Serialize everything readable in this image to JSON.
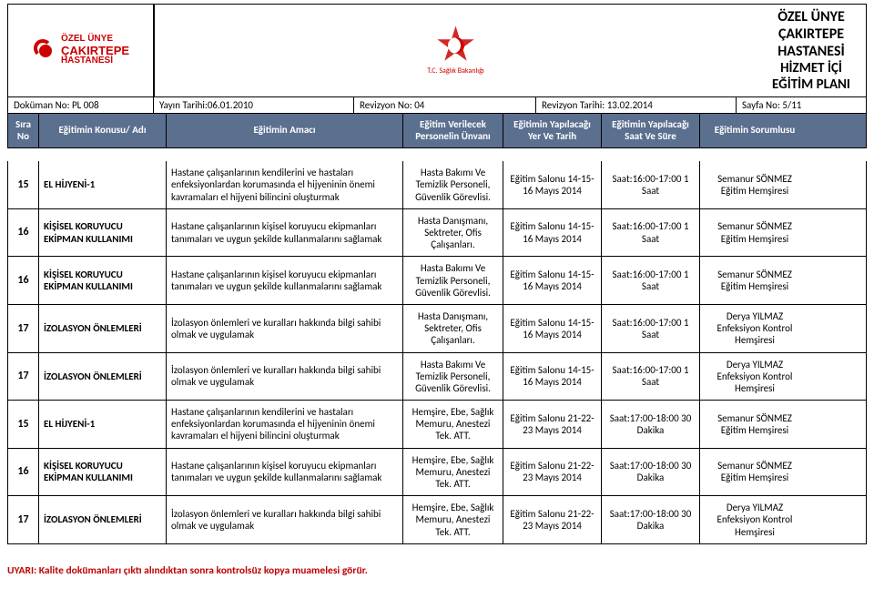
{
  "header": {
    "title": "ÖZEL ÜNYE ÇAKIRTEPE HASTANESİ",
    "subtitle": "HİZMET İÇİ EĞİTİM PLANI",
    "logo_top": "ÖZEL ÜNYE",
    "logo_main": "ÇAKIRTEPE",
    "logo_sub": "HASTANESİ",
    "right_label": "T.C. Sağlık Bakanlığı"
  },
  "meta": {
    "dokuman": "Doküman No: PL 008",
    "yayin": "Yayın Tarihi:06.01.2010",
    "revno": "Revizyon No: 04",
    "revtarih": "Revizyon Tarihi: 13.02.2014",
    "sayfa": "Sayfa No: 5/11"
  },
  "columns": {
    "sira": "Sıra No",
    "konu": "Eğitimin Konusu/ Adı",
    "amac": "Eğitimin Amacı",
    "unvan": "Eğitim Verilecek Personelin Ünvanı",
    "yer": "Eğitimin Yapılacağı Yer Ve Tarih",
    "saat": "Eğitimin Yapılacağı Saat Ve Süre",
    "sorumlu": "Eğitimin Sorumlusu"
  },
  "rows": [
    {
      "sira": "15",
      "konu": "EL HİJYENİ-1",
      "amac": "Hastane çalışanlarının kendilerini ve hastaları enfeksiyonlardan korumasında el hijyeninin önemi kavramaları  el hijyeni bilincini oluşturmak",
      "unvan": "Hasta Bakımı Ve Temizlik Personeli, Güvenlik Görevlisi.",
      "yer": "Eğitim Salonu 14-15-16 Mayıs 2014",
      "saat": "Saat:16:00-17:00 1 Saat",
      "sorumlu": "Semanur SÖNMEZ Eğitim Hemşiresi"
    },
    {
      "sira": "16",
      "konu": "KİŞİSEL KORUYUCU EKİPMAN KULLANIMI",
      "amac": "Hastane çalışanlarının kişisel koruyucu ekipmanları tanımaları ve uygun şekilde kullanmalarını sağlamak",
      "unvan": "Hasta Danışmanı, Sektreter, Ofis Çalışanları.",
      "yer": "Eğitim Salonu 14-15-16 Mayıs 2014",
      "saat": "Saat:16:00-17:00 1 Saat",
      "sorumlu": "Semanur SÖNMEZ Eğitim Hemşiresi"
    },
    {
      "sira": "16",
      "konu": "KİŞİSEL KORUYUCU EKİPMAN KULLANIMI",
      "amac": "Hastane çalışanlarının kişisel koruyucu ekipmanları tanımaları ve uygun şekilde kullanmalarını sağlamak",
      "unvan": "Hasta Bakımı Ve Temizlik Personeli, Güvenlik Görevlisi.",
      "yer": "Eğitim Salonu 14-15-16 Mayıs 2014",
      "saat": "Saat:16:00-17:00 1 Saat",
      "sorumlu": "Semanur SÖNMEZ Eğitim Hemşiresi"
    },
    {
      "sira": "17",
      "konu": "İZOLASYON ÖNLEMLERİ",
      "amac": "İzolasyon önlemleri ve kuralları hakkında bilgi sahibi olmak ve uygulamak",
      "unvan": "Hasta Danışmanı, Sektreter, Ofis Çalışanları.",
      "yer": "Eğitim Salonu 14-15-16 Mayıs 2014",
      "saat": "Saat:16:00-17:00 1 Saat",
      "sorumlu": "Derya YILMAZ Enfeksiyon Kontrol Hemşiresi"
    },
    {
      "sira": "17",
      "konu": "İZOLASYON ÖNLEMLERİ",
      "amac": "İzolasyon önlemleri ve kuralları hakkında bilgi sahibi olmak ve uygulamak",
      "unvan": "Hasta Bakımı Ve Temizlik Personeli, Güvenlik Görevlisi.",
      "yer": "Eğitim Salonu 14-15-16 Mayıs 2014",
      "saat": "Saat:16:00-17:00 1 Saat",
      "sorumlu": "Derya YILMAZ Enfeksiyon Kontrol Hemşiresi"
    },
    {
      "sira": "15",
      "konu": "EL HİJYENİ-1",
      "amac": "Hastane çalışanlarının kendilerini ve hastaları enfeksiyonlardan korumasında el hijyeninin önemi kavramaları  el hijyeni bilincini oluşturmak",
      "unvan": "Hemşire, Ebe, Sağlık Memuru, Anestezi Tek. ATT.",
      "yer": "Eğitim Salonu 21-22-23 Mayıs 2014",
      "saat": "Saat:17:00-18:00 30 Dakika",
      "sorumlu": "Semanur SÖNMEZ Eğitim Hemşiresi"
    },
    {
      "sira": "16",
      "konu": "KİŞİSEL KORUYUCU EKİPMAN KULLANIMI",
      "amac": "Hastane çalışanlarının kişisel koruyucu ekipmanları tanımaları ve uygun şekilde kullanmalarını sağlamak",
      "unvan": "Hemşire, Ebe, Sağlık Memuru, Anestezi Tek. ATT.",
      "yer": "Eğitim Salonu 21-22-23 Mayıs 2014",
      "saat": "Saat:17:00-18:00 30 Dakika",
      "sorumlu": "Semanur SÖNMEZ Eğitim Hemşiresi"
    },
    {
      "sira": "17",
      "konu": "İZOLASYON ÖNLEMLERİ",
      "amac": "İzolasyon önlemleri ve kuralları hakkında bilgi sahibi olmak ve uygulamak",
      "unvan": "Hemşire, Ebe, Sağlık Memuru, Anestezi Tek. ATT.",
      "yer": "Eğitim Salonu 21-22-23 Mayıs 2014",
      "saat": "Saat:17:00-18:00 30 Dakika",
      "sorumlu": "Derya YILMAZ Enfeksiyon Kontrol Hemşiresi"
    }
  ],
  "footer": "UYARI: Kalite dokümanları çıktı alındıktan sonra kontrolsüz kopya muamelesi görür."
}
